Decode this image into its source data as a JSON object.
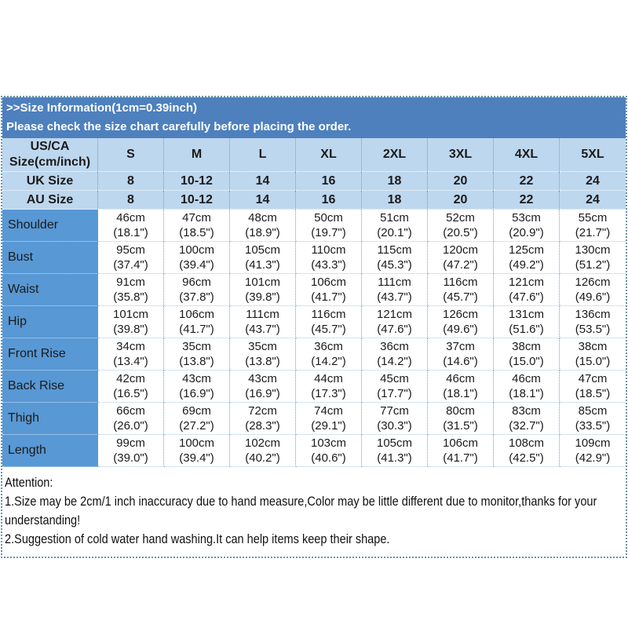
{
  "colors": {
    "title_bar": "#4d80bd",
    "header_bg": "#bdd7ee",
    "label_bg": "#5898d4",
    "grid_blue": "#6d9bcd",
    "grid_light": "#a6c8e4",
    "outer_border": "#6a94a8"
  },
  "title": {
    "line1": ">>Size Information(1cm=0.39inch)",
    "line2": "Please check the size chart carefully before placing the order."
  },
  "table": {
    "corner": {
      "line1": "US/CA",
      "line2": "Size(cm/inch)"
    },
    "size_headers": [
      "S",
      "M",
      "L",
      "XL",
      "2XL",
      "3XL",
      "4XL",
      "5XL"
    ],
    "uk_row": {
      "label": "UK Size",
      "values": [
        "8",
        "10-12",
        "14",
        "16",
        "18",
        "20",
        "22",
        "24"
      ]
    },
    "au_row": {
      "label": "AU Size",
      "values": [
        "8",
        "10-12",
        "14",
        "16",
        "18",
        "20",
        "22",
        "24"
      ]
    },
    "measurement_rows": [
      {
        "label": "Shoulder",
        "cells": [
          {
            "cm": "46cm",
            "inch": "(18.1\")"
          },
          {
            "cm": "47cm",
            "inch": "(18.5\")"
          },
          {
            "cm": "48cm",
            "inch": "(18.9\")"
          },
          {
            "cm": "50cm",
            "inch": "(19.7\")"
          },
          {
            "cm": "51cm",
            "inch": "(20.1\")"
          },
          {
            "cm": "52cm",
            "inch": "(20.5\")"
          },
          {
            "cm": "53cm",
            "inch": "(20.9\")"
          },
          {
            "cm": "55cm",
            "inch": "(21.7\")"
          }
        ]
      },
      {
        "label": "Bust",
        "cells": [
          {
            "cm": "95cm",
            "inch": "(37.4\")"
          },
          {
            "cm": "100cm",
            "inch": "(39.4\")"
          },
          {
            "cm": "105cm",
            "inch": "(41.3\")"
          },
          {
            "cm": "110cm",
            "inch": "(43.3\")"
          },
          {
            "cm": "115cm",
            "inch": "(45.3\")"
          },
          {
            "cm": "120cm",
            "inch": "(47.2\")"
          },
          {
            "cm": "125cm",
            "inch": "(49.2\")"
          },
          {
            "cm": "130cm",
            "inch": "(51.2\")"
          }
        ]
      },
      {
        "label": "Waist",
        "cells": [
          {
            "cm": "91cm",
            "inch": "(35.8\")"
          },
          {
            "cm": "96cm",
            "inch": "(37.8\")"
          },
          {
            "cm": "101cm",
            "inch": "(39.8\")"
          },
          {
            "cm": "106cm",
            "inch": "(41.7\")"
          },
          {
            "cm": "111cm",
            "inch": "(43.7\")"
          },
          {
            "cm": "116cm",
            "inch": "(45.7\")"
          },
          {
            "cm": "121cm",
            "inch": "(47.6\")"
          },
          {
            "cm": "126cm",
            "inch": "(49.6\")"
          }
        ]
      },
      {
        "label": "Hip",
        "cells": [
          {
            "cm": "101cm",
            "inch": "(39.8\")"
          },
          {
            "cm": "106cm",
            "inch": "(41.7\")"
          },
          {
            "cm": "111cm",
            "inch": "(43.7\")"
          },
          {
            "cm": "116cm",
            "inch": "(45.7\")"
          },
          {
            "cm": "121cm",
            "inch": "(47.6\")"
          },
          {
            "cm": "126cm",
            "inch": "(49.6\")"
          },
          {
            "cm": "131cm",
            "inch": "(51.6\")"
          },
          {
            "cm": "136cm",
            "inch": "(53.5\")"
          }
        ]
      },
      {
        "label": "Front Rise",
        "cells": [
          {
            "cm": "34cm",
            "inch": "(13.4\")"
          },
          {
            "cm": "35cm",
            "inch": "(13.8\")"
          },
          {
            "cm": "35cm",
            "inch": "(13.8\")"
          },
          {
            "cm": "36cm",
            "inch": "(14.2\")"
          },
          {
            "cm": "36cm",
            "inch": "(14.2\")"
          },
          {
            "cm": "37cm",
            "inch": "(14.6\")"
          },
          {
            "cm": "38cm",
            "inch": "(15.0\")"
          },
          {
            "cm": "38cm",
            "inch": "(15.0\")"
          }
        ]
      },
      {
        "label": "Back Rise",
        "cells": [
          {
            "cm": "42cm",
            "inch": "(16.5\")"
          },
          {
            "cm": "43cm",
            "inch": "(16.9\")"
          },
          {
            "cm": "43cm",
            "inch": "(16.9\")"
          },
          {
            "cm": "44cm",
            "inch": "(17.3\")"
          },
          {
            "cm": "45cm",
            "inch": "(17.7\")"
          },
          {
            "cm": "46cm",
            "inch": "(18.1\")"
          },
          {
            "cm": "46cm",
            "inch": "(18.1\")"
          },
          {
            "cm": "47cm",
            "inch": "(18.5\")"
          }
        ]
      },
      {
        "label": "Thigh",
        "cells": [
          {
            "cm": "66cm",
            "inch": "(26.0\")"
          },
          {
            "cm": "69cm",
            "inch": "(27.2\")"
          },
          {
            "cm": "72cm",
            "inch": "(28.3\")"
          },
          {
            "cm": "74cm",
            "inch": "(29.1\")"
          },
          {
            "cm": "77cm",
            "inch": "(30.3\")"
          },
          {
            "cm": "80cm",
            "inch": "(31.5\")"
          },
          {
            "cm": "83cm",
            "inch": "(32.7\")"
          },
          {
            "cm": "85cm",
            "inch": "(33.5\")"
          }
        ]
      },
      {
        "label": "Length",
        "cells": [
          {
            "cm": "99cm",
            "inch": "(39.0\")"
          },
          {
            "cm": "100cm",
            "inch": "(39.4\")"
          },
          {
            "cm": "102cm",
            "inch": "(40.2\")"
          },
          {
            "cm": "103cm",
            "inch": "(40.6\")"
          },
          {
            "cm": "105cm",
            "inch": "(41.3\")"
          },
          {
            "cm": "106cm",
            "inch": "(41.7\")"
          },
          {
            "cm": "108cm",
            "inch": "(42.5\")"
          },
          {
            "cm": "109cm",
            "inch": "(42.9\")"
          }
        ]
      }
    ]
  },
  "attention": {
    "heading": "Attention:",
    "line1": "1.Size may be 2cm/1 inch inaccuracy due to hand measure,Color may be little different due to monitor,thanks for your understanding!",
    "line2": "2.Suggestion of cold water hand washing.It can help items keep their shape."
  }
}
